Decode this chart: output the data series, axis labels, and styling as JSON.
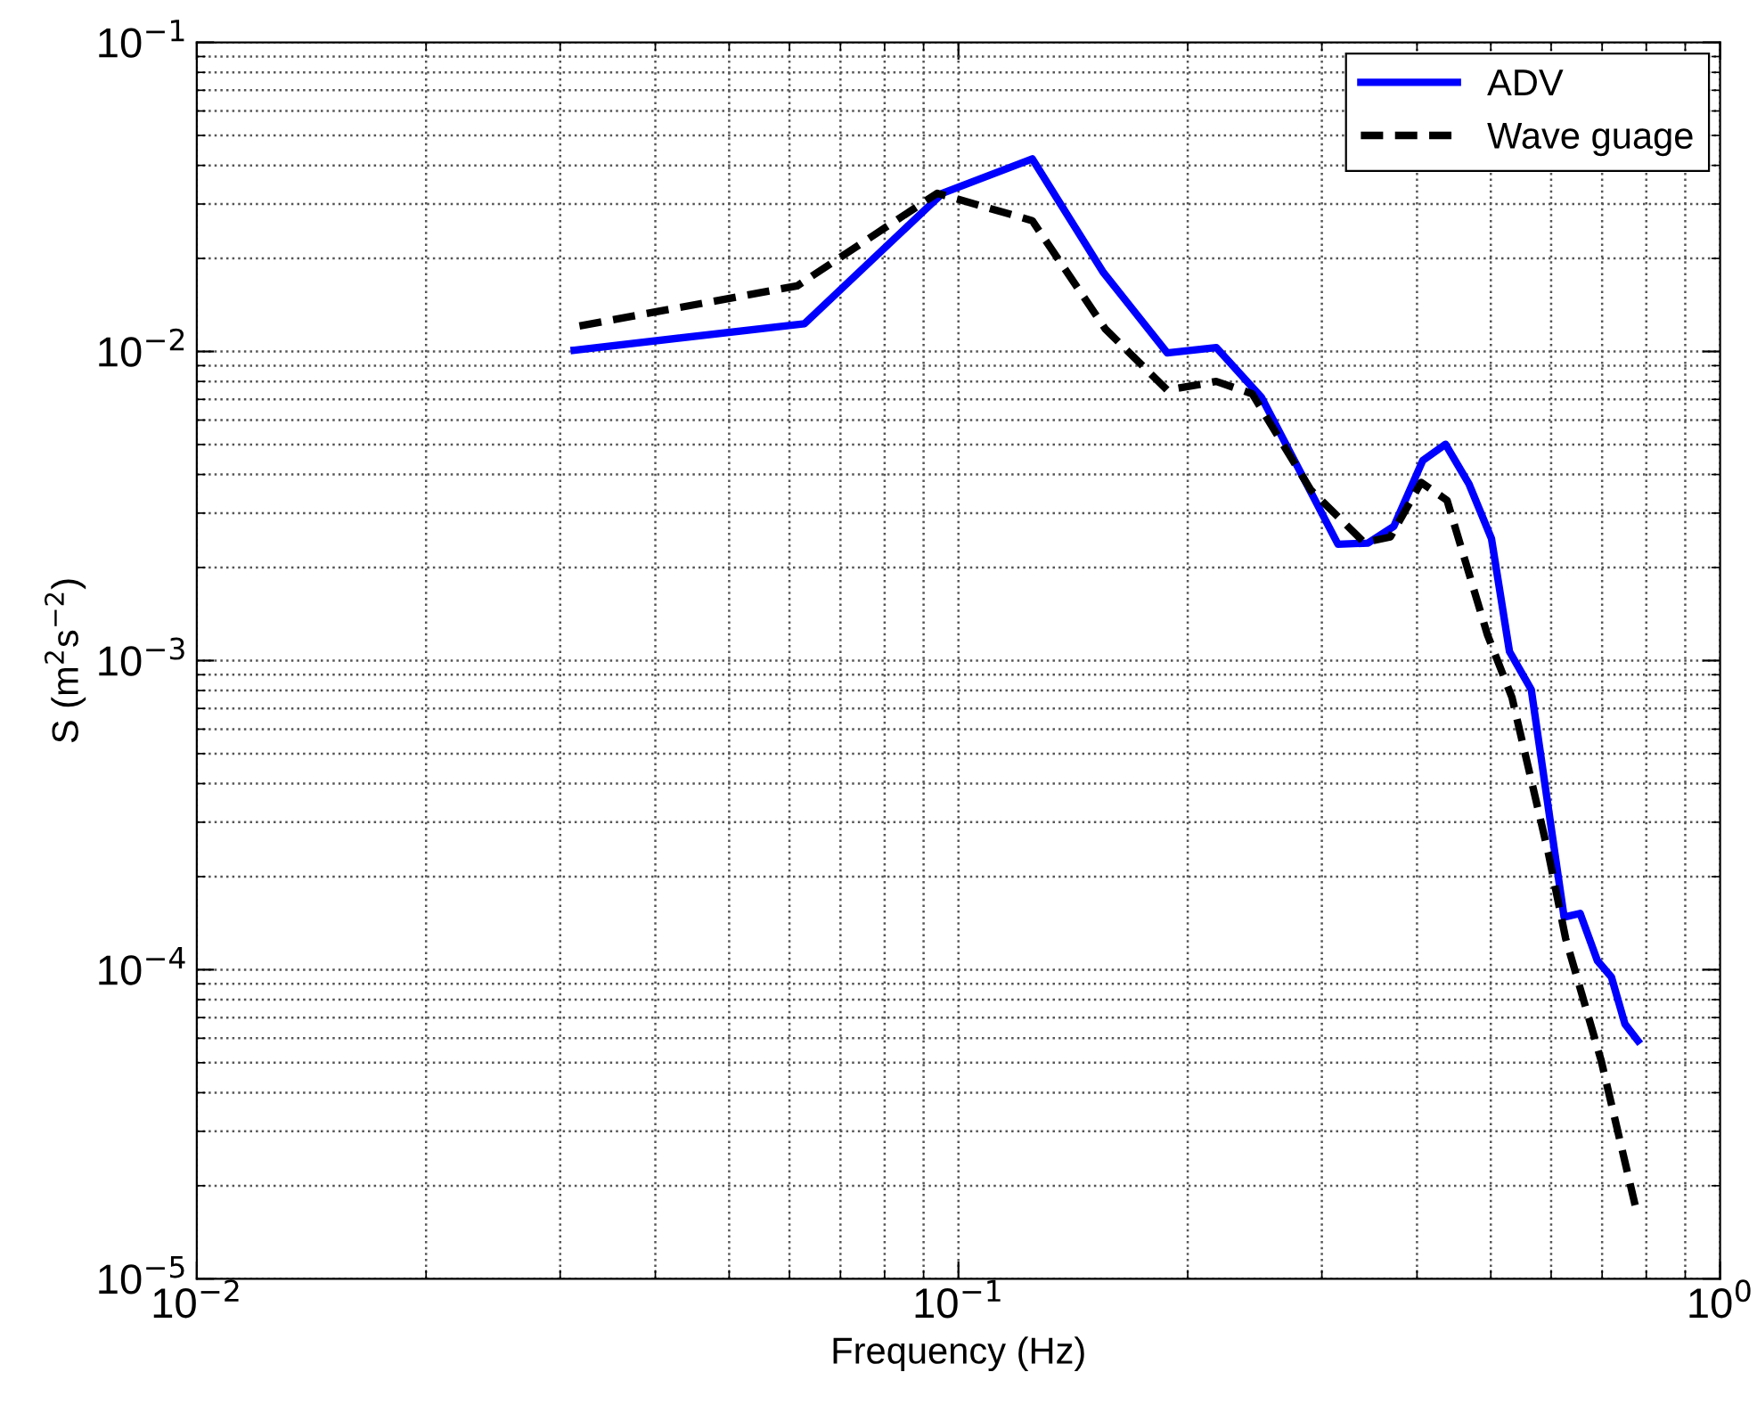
{
  "chart_data": {
    "type": "line",
    "xlabel": "Frequency (Hz)",
    "ylabel": "S (m$^{2}$s$^{−2}$)",
    "log": "xy",
    "grid": true,
    "legend": "top right",
    "xlim": [
      0.01,
      1
    ],
    "xticks": [
      {
        "value": 0.01,
        "label": "10$^{−2}$"
      },
      {
        "value": 0.1,
        "label": "10$^{−1}$"
      },
      {
        "value": 1,
        "label": "10$^{0}$"
      }
    ],
    "ylim": [
      1e-05,
      0.1
    ],
    "yticks": [
      {
        "value": 1e-05,
        "label": "10$^{−5}$"
      },
      {
        "value": 0.0001,
        "label": "10$^{−4}$"
      },
      {
        "value": 0.001,
        "label": "10$^{−3}$"
      },
      {
        "value": 0.01,
        "label": "10$^{−2}$"
      },
      {
        "value": 0.1,
        "label": "10$^{−1}$"
      }
    ],
    "series": [
      {
        "name": "ADV",
        "color": "#0000ff",
        "line_style": "solid",
        "x": [
          0.0313,
          0.0628,
          0.0953,
          0.125,
          0.155,
          0.188,
          0.218,
          0.25,
          0.315,
          0.345,
          0.373,
          0.407,
          0.436,
          0.468,
          0.501,
          0.529,
          0.565,
          0.624,
          0.655,
          0.69,
          0.72,
          0.75,
          0.78
        ],
        "values": [
          0.0101,
          0.0123,
          0.0325,
          0.042,
          0.018,
          0.0099,
          0.0103,
          0.0071,
          0.00238,
          0.0024,
          0.00272,
          0.00444,
          0.00501,
          0.00373,
          0.00248,
          0.00107,
          0.000806,
          0.000148,
          0.000152,
          0.000107,
          9.46e-05,
          6.67e-05,
          5.89e-05
        ]
      },
      {
        "name": "Wave guage",
        "color": "#000000",
        "line_style": "dashed",
        "x": [
          0.0318,
          0.0614,
          0.0938,
          0.125,
          0.156,
          0.188,
          0.218,
          0.243,
          0.29,
          0.341,
          0.369,
          0.405,
          0.438,
          0.495,
          0.533,
          0.595,
          0.627,
          0.698,
          0.777
        ],
        "values": [
          0.0121,
          0.0163,
          0.0325,
          0.0265,
          0.0118,
          0.0075,
          0.008,
          0.0073,
          0.00357,
          0.00241,
          0.00251,
          0.00377,
          0.0033,
          0.00121,
          0.00076,
          0.000238,
          0.000126,
          5.08e-05,
          1.65e-05
        ]
      }
    ]
  }
}
